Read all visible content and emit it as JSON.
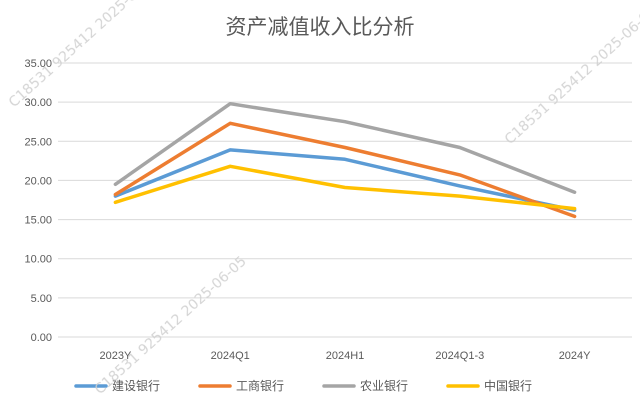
{
  "watermarks": [
    "C18531 925412 2025-06-05",
    "C18531 925412 2025-06-05",
    "C18531 925412 2025-06-05"
  ],
  "chart_data": {
    "type": "line",
    "title": "资产减值收入比分析",
    "categories": [
      "2023Y",
      "2024Q1",
      "2024H1",
      "2024Q1-3",
      "2024Y"
    ],
    "ylim": [
      0,
      35
    ],
    "yticks": [
      "0.00",
      "5.00",
      "10.00",
      "15.00",
      "20.00",
      "25.00",
      "30.00",
      "35.00"
    ],
    "grid": true,
    "legend_position": "bottom",
    "series": [
      {
        "name": "建设银行",
        "color": "#5b9bd5",
        "values": [
          18.0,
          23.9,
          22.7,
          19.3,
          16.2
        ]
      },
      {
        "name": "工商银行",
        "color": "#ed7d31",
        "values": [
          18.2,
          27.3,
          24.2,
          20.7,
          15.4
        ]
      },
      {
        "name": "农业银行",
        "color": "#a5a5a5",
        "values": [
          19.5,
          29.8,
          27.5,
          24.2,
          18.5
        ]
      },
      {
        "name": "中国银行",
        "color": "#ffc000",
        "values": [
          17.2,
          21.8,
          19.1,
          18.0,
          16.4
        ]
      }
    ]
  }
}
